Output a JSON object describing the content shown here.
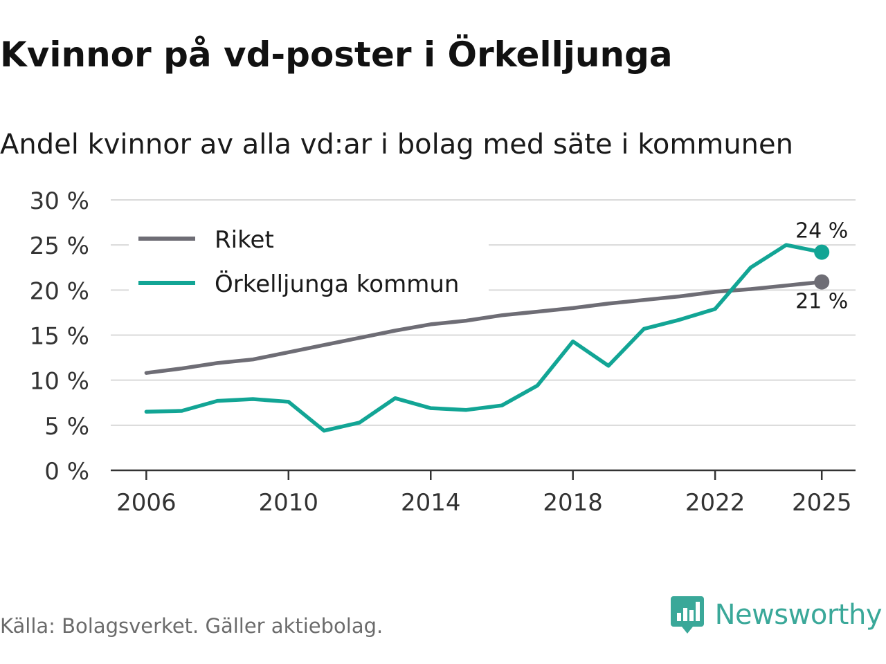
{
  "title": "Kvinnor på vd-poster i Örkelljunga",
  "subtitle": "Andel kvinnor av alla vd:ar i bolag med säte i kommunen",
  "source": "Källa: Bolagsverket. Gäller aktiebolag.",
  "brand": {
    "name": "Newsworthy",
    "icon": "newsworthy-logo-icon"
  },
  "colors": {
    "riket": "#6e6d75",
    "kommun": "#12a595",
    "grid": "#d9d9d9",
    "axis": "#333333",
    "brand": "#3aa899"
  },
  "chart_data": {
    "type": "line",
    "title": "Kvinnor på vd-poster i Örkelljunga",
    "subtitle": "Andel kvinnor av alla vd:ar i bolag med säte i kommunen",
    "xlabel": "",
    "ylabel": "",
    "x": [
      2006,
      2007,
      2008,
      2009,
      2010,
      2011,
      2012,
      2013,
      2014,
      2015,
      2016,
      2017,
      2018,
      2019,
      2020,
      2021,
      2022,
      2023,
      2024,
      2025
    ],
    "x_ticks": [
      2006,
      2010,
      2014,
      2018,
      2022,
      2025
    ],
    "x_tick_labels": [
      "2006",
      "2010",
      "2014",
      "2018",
      "2022",
      "2025"
    ],
    "xlim": [
      2005.0,
      2025.95
    ],
    "ylim": [
      0,
      30
    ],
    "y_ticks": [
      0,
      5,
      10,
      15,
      20,
      25,
      30
    ],
    "y_tick_labels": [
      "0 %",
      "5 %",
      "10 %",
      "15 %",
      "20 %",
      "25 %",
      "30 %"
    ],
    "grid": true,
    "legend_position": "top-left",
    "series": [
      {
        "name": "Riket",
        "color": "#6e6d75",
        "values": [
          10.8,
          11.3,
          11.9,
          12.3,
          13.1,
          13.9,
          14.7,
          15.5,
          16.2,
          16.6,
          17.2,
          17.6,
          18.0,
          18.5,
          18.9,
          19.3,
          19.8,
          20.1,
          20.5,
          20.9
        ],
        "end_label": "21 %",
        "end_label_position": "below"
      },
      {
        "name": "Örkelljunga kommun",
        "color": "#12a595",
        "values": [
          6.5,
          6.6,
          7.7,
          7.9,
          7.6,
          4.4,
          5.3,
          8.0,
          6.9,
          6.7,
          7.2,
          9.4,
          14.3,
          11.6,
          15.7,
          16.7,
          17.9,
          22.5,
          25.0,
          24.2
        ],
        "end_label": "24 %",
        "end_label_position": "above"
      }
    ]
  }
}
